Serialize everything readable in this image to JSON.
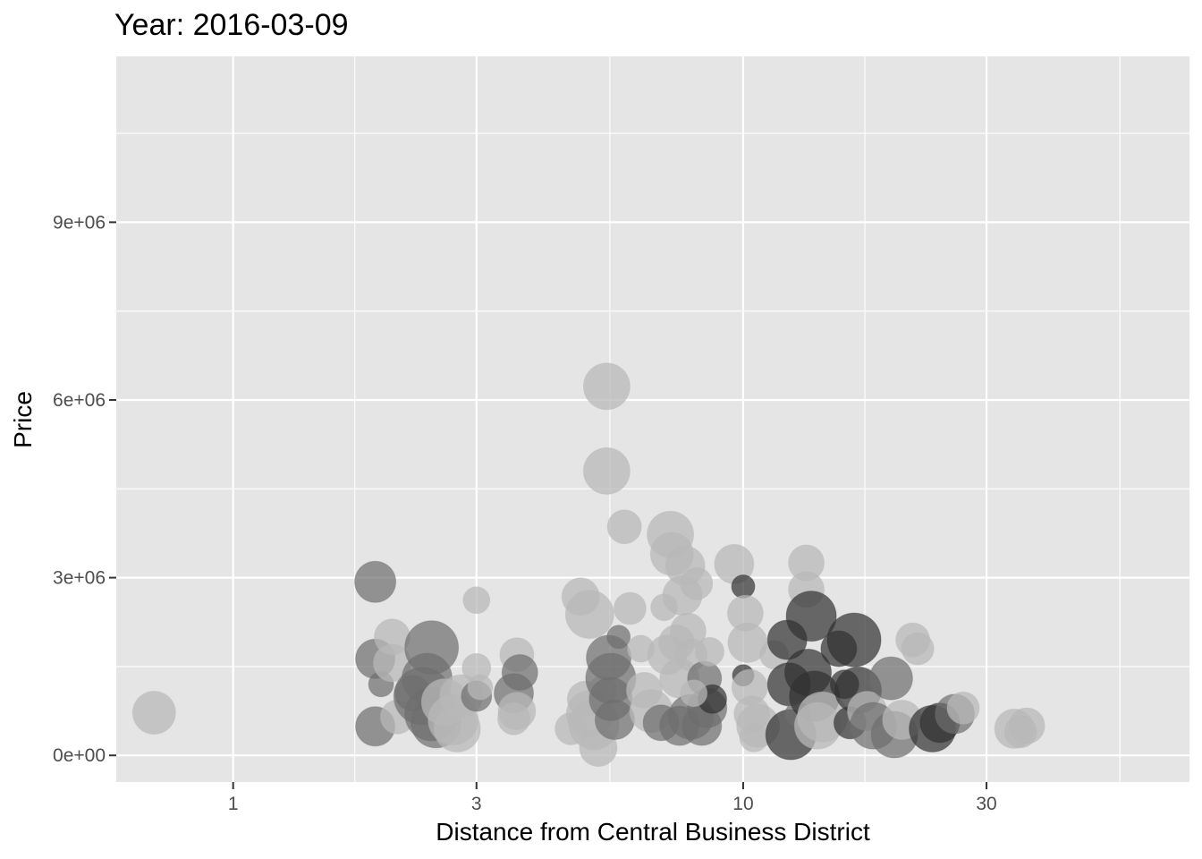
{
  "chart_data": {
    "type": "scatter",
    "title": "Year: 2016-03-09",
    "xlabel": "Distance from Central Business District",
    "ylabel": "Price",
    "x_scale": "log10",
    "xlim": [
      0.59,
      75
    ],
    "ylim": [
      -450000,
      11800000
    ],
    "x_ticks": [
      1,
      3,
      10,
      30
    ],
    "x_tick_labels": [
      "1",
      "3",
      "10",
      "30"
    ],
    "x_minor_ticks": [
      0.5477,
      1.7321,
      5.4772,
      17.3205,
      54.7723
    ],
    "y_ticks": [
      0,
      3000000,
      6000000,
      9000000
    ],
    "y_tick_labels": [
      "0e+00",
      "3e+06",
      "6e+06",
      "9e+06"
    ],
    "y_minor_ticks": [
      1500000,
      4500000,
      7500000,
      10500000
    ],
    "grid": true,
    "colors": {
      "panel": "#e5e5e5",
      "grid": "#ffffff",
      "dark": "#303030",
      "mid": "#6e6e6e",
      "light": "#b8b8b8"
    },
    "point_fields": [
      "distance",
      "price",
      "size",
      "shade"
    ],
    "points": [
      [
        0.7,
        720000,
        24,
        "light"
      ],
      [
        1.9,
        2930000,
        23,
        "mid"
      ],
      [
        1.9,
        1630000,
        22,
        "mid"
      ],
      [
        1.95,
        1200000,
        14,
        "mid"
      ],
      [
        1.9,
        490000,
        22,
        "mid"
      ],
      [
        2.05,
        2000000,
        20,
        "light"
      ],
      [
        2.05,
        1560000,
        21,
        "light"
      ],
      [
        2.1,
        650000,
        19,
        "light"
      ],
      [
        2.25,
        1050000,
        20,
        "mid"
      ],
      [
        2.45,
        1820000,
        30,
        "mid"
      ],
      [
        2.4,
        1300000,
        28,
        "mid"
      ],
      [
        2.35,
        1000000,
        32,
        "mid"
      ],
      [
        2.45,
        700000,
        30,
        "mid"
      ],
      [
        2.5,
        550000,
        28,
        "mid"
      ],
      [
        2.6,
        900000,
        26,
        "light"
      ],
      [
        2.7,
        600000,
        28,
        "light"
      ],
      [
        2.8,
        1000000,
        24,
        "light"
      ],
      [
        2.75,
        450000,
        26,
        "light"
      ],
      [
        3.0,
        2620000,
        15,
        "light"
      ],
      [
        3.0,
        1480000,
        16,
        "light"
      ],
      [
        3.0,
        1000000,
        17,
        "mid"
      ],
      [
        3.05,
        1150000,
        14,
        "light"
      ],
      [
        3.6,
        1700000,
        19,
        "light"
      ],
      [
        3.65,
        1400000,
        20,
        "mid"
      ],
      [
        3.55,
        1050000,
        22,
        "mid"
      ],
      [
        3.6,
        750000,
        21,
        "light"
      ],
      [
        3.55,
        620000,
        18,
        "light"
      ],
      [
        4.6,
        450000,
        18,
        "light"
      ],
      [
        4.8,
        2680000,
        21,
        "light"
      ],
      [
        4.9,
        950000,
        20,
        "light"
      ],
      [
        5.0,
        2380000,
        27,
        "light"
      ],
      [
        5.0,
        700000,
        26,
        "light"
      ],
      [
        5.1,
        520000,
        28,
        "light"
      ],
      [
        5.2,
        130000,
        21,
        "light"
      ],
      [
        5.3,
        1100000,
        16,
        "light"
      ],
      [
        5.4,
        6230000,
        26,
        "light"
      ],
      [
        5.4,
        4800000,
        26,
        "light"
      ],
      [
        5.45,
        1650000,
        25,
        "mid"
      ],
      [
        5.5,
        1300000,
        28,
        "mid"
      ],
      [
        5.5,
        950000,
        24,
        "mid"
      ],
      [
        5.6,
        600000,
        22,
        "mid"
      ],
      [
        5.7,
        2000000,
        13,
        "mid"
      ],
      [
        5.85,
        3860000,
        19,
        "light"
      ],
      [
        6.0,
        2480000,
        18,
        "light"
      ],
      [
        6.3,
        1800000,
        15,
        "light"
      ],
      [
        6.4,
        1100000,
        20,
        "light"
      ],
      [
        6.6,
        750000,
        24,
        "light"
      ],
      [
        6.9,
        550000,
        20,
        "mid"
      ],
      [
        7.0,
        2500000,
        15,
        "light"
      ],
      [
        7.1,
        1700000,
        22,
        "light"
      ],
      [
        7.2,
        3730000,
        26,
        "light"
      ],
      [
        7.25,
        3400000,
        24,
        "light"
      ],
      [
        7.4,
        1900000,
        20,
        "light"
      ],
      [
        7.5,
        1300000,
        22,
        "light"
      ],
      [
        7.6,
        2700000,
        22,
        "light"
      ],
      [
        7.7,
        3200000,
        22,
        "light"
      ],
      [
        7.8,
        2100000,
        20,
        "light"
      ],
      [
        7.9,
        1700000,
        18,
        "light"
      ],
      [
        7.5,
        500000,
        22,
        "mid"
      ],
      [
        7.9,
        650000,
        25,
        "mid"
      ],
      [
        8.1,
        2900000,
        18,
        "light"
      ],
      [
        8.3,
        500000,
        22,
        "mid"
      ],
      [
        8.4,
        1300000,
        19,
        "mid"
      ],
      [
        8.5,
        800000,
        22,
        "mid"
      ],
      [
        8.6,
        1750000,
        16,
        "light"
      ],
      [
        8.7,
        950000,
        16,
        "dark"
      ],
      [
        8.0,
        1050000,
        15,
        "light"
      ],
      [
        9.6,
        3230000,
        22,
        "light"
      ],
      [
        10.0,
        2850000,
        13,
        "dark"
      ],
      [
        10.0,
        1350000,
        12,
        "dark"
      ],
      [
        10.1,
        2400000,
        20,
        "light"
      ],
      [
        10.2,
        1900000,
        22,
        "light"
      ],
      [
        10.3,
        1150000,
        20,
        "light"
      ],
      [
        10.4,
        700000,
        20,
        "light"
      ],
      [
        10.5,
        300000,
        16,
        "light"
      ],
      [
        10.7,
        500000,
        24,
        "light"
      ],
      [
        11.5,
        1700000,
        16,
        "light"
      ],
      [
        12.2,
        1950000,
        22,
        "dark"
      ],
      [
        12.3,
        1200000,
        24,
        "dark"
      ],
      [
        12.4,
        350000,
        28,
        "dark"
      ],
      [
        12.8,
        700000,
        14,
        "mid"
      ],
      [
        13.3,
        3250000,
        20,
        "light"
      ],
      [
        13.3,
        2800000,
        20,
        "light"
      ],
      [
        13.6,
        2350000,
        28,
        "dark"
      ],
      [
        13.4,
        1400000,
        26,
        "dark"
      ],
      [
        13.8,
        1000000,
        28,
        "dark"
      ],
      [
        14.0,
        500000,
        26,
        "light"
      ],
      [
        14.3,
        650000,
        28,
        "light"
      ],
      [
        15.4,
        1800000,
        20,
        "dark"
      ],
      [
        15.8,
        1200000,
        16,
        "dark"
      ],
      [
        16.5,
        1950000,
        30,
        "dark"
      ],
      [
        16.8,
        1100000,
        26,
        "dark"
      ],
      [
        16.2,
        550000,
        18,
        "dark"
      ],
      [
        17.5,
        750000,
        22,
        "light"
      ],
      [
        18.0,
        500000,
        26,
        "mid"
      ],
      [
        19.5,
        1300000,
        24,
        "mid"
      ],
      [
        19.8,
        350000,
        26,
        "mid"
      ],
      [
        20.5,
        600000,
        22,
        "light"
      ],
      [
        21.5,
        1950000,
        19,
        "light"
      ],
      [
        22.0,
        1800000,
        18,
        "light"
      ],
      [
        23.5,
        450000,
        26,
        "dark"
      ],
      [
        24.3,
        550000,
        22,
        "dark"
      ],
      [
        26.0,
        700000,
        22,
        "mid"
      ],
      [
        27.0,
        800000,
        18,
        "light"
      ],
      [
        34.0,
        450000,
        22,
        "light"
      ],
      [
        36.0,
        500000,
        20,
        "light"
      ],
      [
        35.0,
        400000,
        18,
        "light"
      ]
    ]
  }
}
